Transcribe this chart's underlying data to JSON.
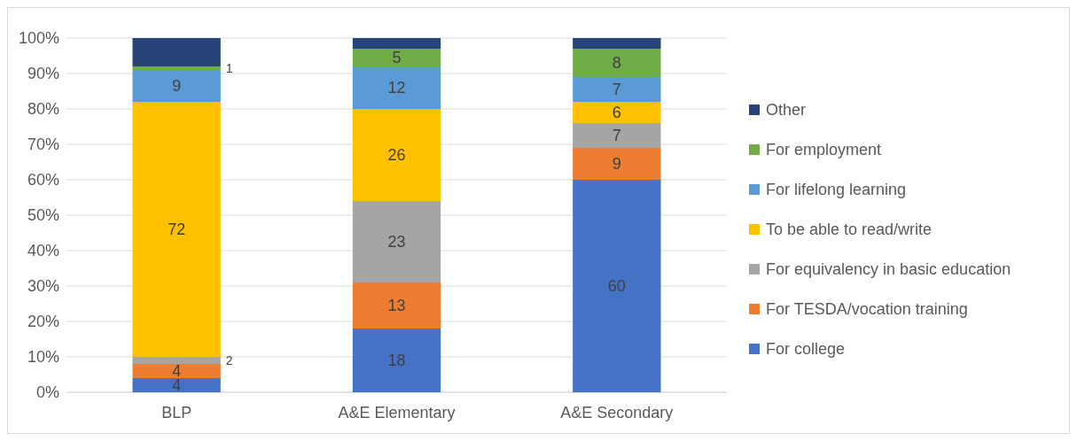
{
  "chart_data": {
    "type": "bar",
    "stacked": true,
    "categories": [
      "BLP",
      "A&E Elementary",
      "A&E Secondary"
    ],
    "series": [
      {
        "name": "For college",
        "color": "#4472c4",
        "values": [
          4,
          18,
          60
        ],
        "value_labels": [
          "4",
          "18",
          "60"
        ]
      },
      {
        "name": "For TESDA/vocation training",
        "color": "#ed7d31",
        "values": [
          4,
          13,
          9
        ],
        "value_labels": [
          "4",
          "13",
          "9"
        ]
      },
      {
        "name": "For equivalency in basic education",
        "color": "#a5a5a5",
        "values": [
          2,
          23,
          7
        ],
        "value_labels": [
          "2",
          "23",
          "7"
        ]
      },
      {
        "name": "To be able to read/write",
        "color": "#ffc000",
        "values": [
          72,
          26,
          6
        ],
        "value_labels": [
          "72",
          "26",
          "6"
        ]
      },
      {
        "name": "For lifelong learning",
        "color": "#5b9bd5",
        "values": [
          9,
          12,
          7
        ],
        "value_labels": [
          "9",
          "12",
          "7"
        ]
      },
      {
        "name": "For employment",
        "color": "#70ad47",
        "values": [
          1,
          5,
          8
        ],
        "value_labels": [
          "1",
          "5",
          "8"
        ]
      },
      {
        "name": "Other",
        "color": "#264478",
        "values": [
          8,
          3,
          3
        ],
        "value_labels": [
          null,
          null,
          null
        ]
      }
    ],
    "ylim": [
      0,
      100
    ],
    "yticks": [
      {
        "value": 0,
        "label": "0%"
      },
      {
        "value": 10,
        "label": "10%"
      },
      {
        "value": 20,
        "label": "20%"
      },
      {
        "value": 30,
        "label": "30%"
      },
      {
        "value": 40,
        "label": "40%"
      },
      {
        "value": 50,
        "label": "50%"
      },
      {
        "value": 60,
        "label": "60%"
      },
      {
        "value": 70,
        "label": "70%"
      },
      {
        "value": 80,
        "label": "80%"
      },
      {
        "value": 90,
        "label": "90%"
      },
      {
        "value": 100,
        "label": "100%"
      }
    ],
    "grid": "y",
    "legend": "right"
  }
}
